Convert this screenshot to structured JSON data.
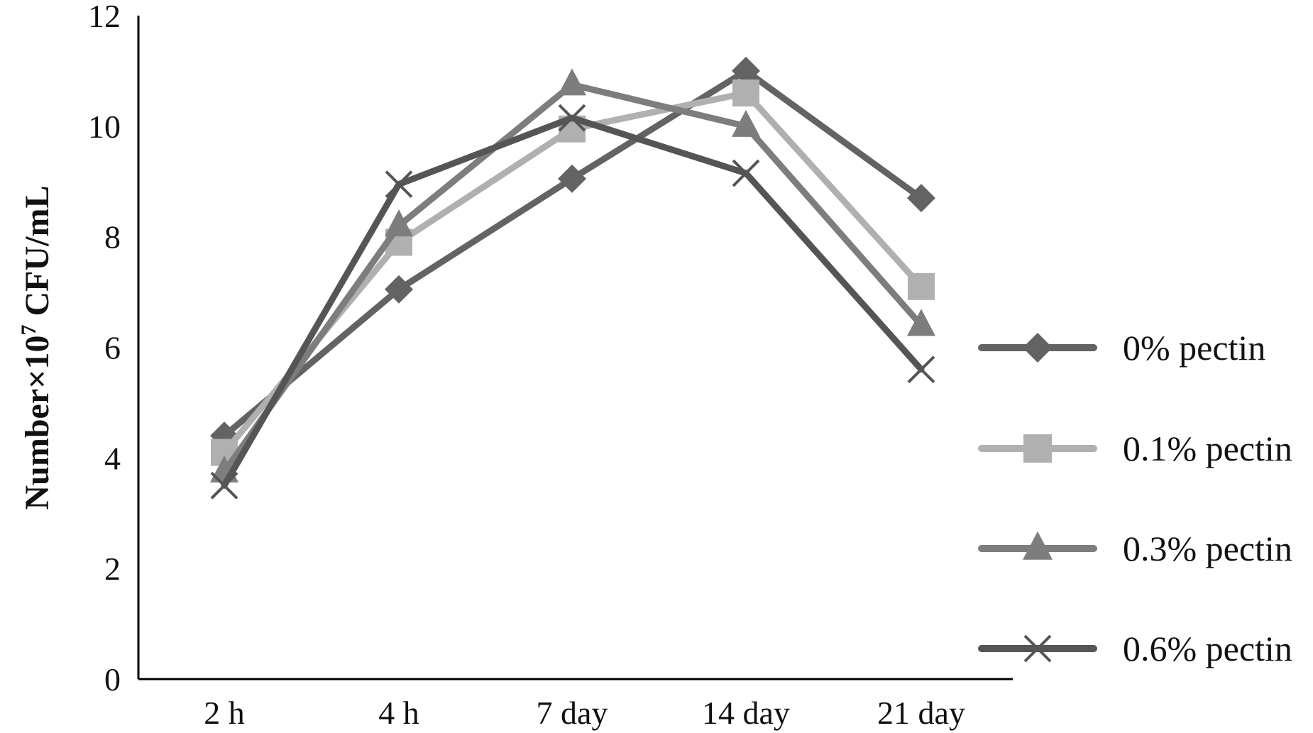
{
  "chart_data": {
    "type": "line",
    "title": "",
    "xlabel": "",
    "ylabel": "Number×10",
    "ylabel_superscript": "7",
    "ylabel_suffix": " CFU/mL",
    "ylim": [
      0,
      12
    ],
    "yticks": [
      "0",
      "2",
      "4",
      "6",
      "8",
      "10",
      "12"
    ],
    "categories": [
      "2 h",
      "4 h",
      "7 day",
      "14 day",
      "21 day"
    ],
    "grid": false,
    "legend_position": "right",
    "series": [
      {
        "name": "0% pectin",
        "marker": "diamond",
        "color": "#636363",
        "values": [
          4.4,
          7.05,
          9.05,
          11.0,
          8.7
        ]
      },
      {
        "name": "0.1% pectin",
        "marker": "square",
        "color": "#b0b0b0",
        "values": [
          4.1,
          7.9,
          9.95,
          10.6,
          7.1
        ]
      },
      {
        "name": "0.3% pectin",
        "marker": "triangle",
        "color": "#7d7d7d",
        "values": [
          3.75,
          8.2,
          10.75,
          10.0,
          6.4
        ]
      },
      {
        "name": "0.6% pectin",
        "marker": "x",
        "color": "#555555",
        "values": [
          3.5,
          8.95,
          10.15,
          9.15,
          5.6
        ]
      }
    ]
  }
}
